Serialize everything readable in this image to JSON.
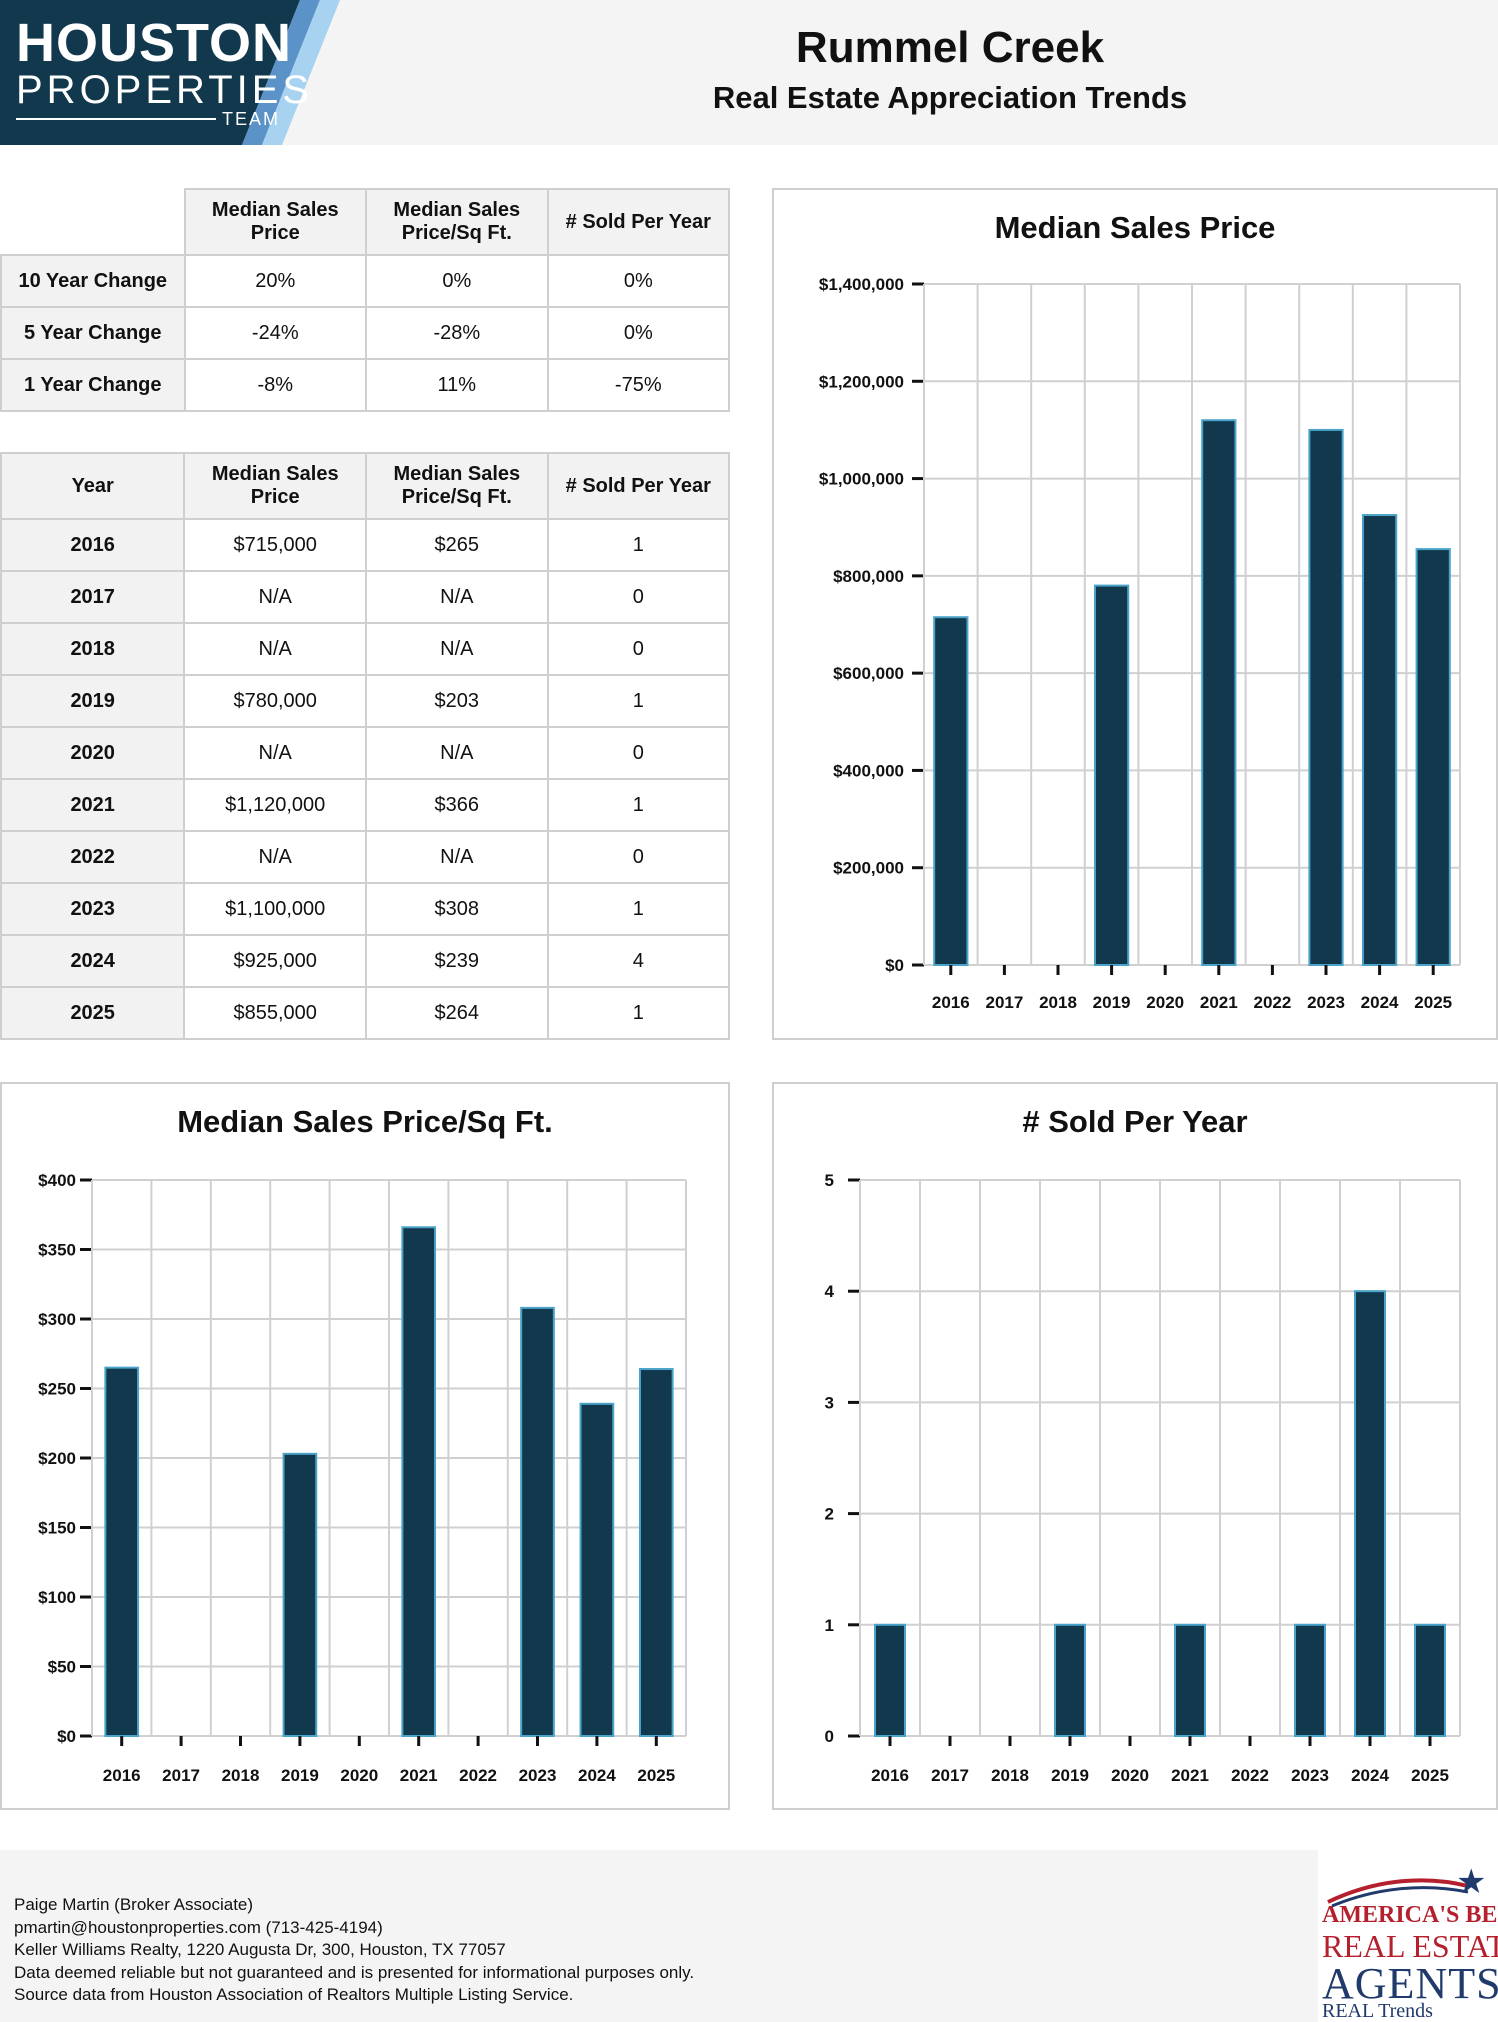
{
  "logo": {
    "line1": "HOUSTON",
    "line2": "PROPERTIES",
    "line3": "TEAM"
  },
  "header": {
    "title": "Rummel Creek",
    "subtitle": "Real Estate Appreciation Trends"
  },
  "change_table": {
    "headers": [
      "",
      "Median Sales Price",
      "Median Sales Price/Sq Ft.",
      "# Sold Per Year"
    ],
    "rows": [
      {
        "label": "10 Year Change",
        "price": "20%",
        "sqft": "0%",
        "sold": "0%"
      },
      {
        "label": "5 Year Change",
        "price": "-24%",
        "sqft": "-28%",
        "sold": "0%"
      },
      {
        "label": "1 Year Change",
        "price": "-8%",
        "sqft": "11%",
        "sold": "-75%"
      }
    ]
  },
  "year_table": {
    "headers": [
      "Year",
      "Median Sales Price",
      "Median Sales Price/Sq Ft.",
      "# Sold Per Year"
    ],
    "rows": [
      {
        "year": "2016",
        "price": "$715,000",
        "sqft": "$265",
        "sold": "1"
      },
      {
        "year": "2017",
        "price": "N/A",
        "sqft": "N/A",
        "sold": "0"
      },
      {
        "year": "2018",
        "price": "N/A",
        "sqft": "N/A",
        "sold": "0"
      },
      {
        "year": "2019",
        "price": "$780,000",
        "sqft": "$203",
        "sold": "1"
      },
      {
        "year": "2020",
        "price": "N/A",
        "sqft": "N/A",
        "sold": "0"
      },
      {
        "year": "2021",
        "price": "$1,120,000",
        "sqft": "$366",
        "sold": "1"
      },
      {
        "year": "2022",
        "price": "N/A",
        "sqft": "N/A",
        "sold": "0"
      },
      {
        "year": "2023",
        "price": "$1,100,000",
        "sqft": "$308",
        "sold": "1"
      },
      {
        "year": "2024",
        "price": "$925,000",
        "sqft": "$239",
        "sold": "4"
      },
      {
        "year": "2025",
        "price": "$855,000",
        "sqft": "$264",
        "sold": "1"
      }
    ]
  },
  "chart_data": [
    {
      "type": "bar",
      "title": "Median Sales Price",
      "categories": [
        "2016",
        "2017",
        "2018",
        "2019",
        "2020",
        "2021",
        "2022",
        "2023",
        "2024",
        "2025"
      ],
      "values": [
        715000,
        0,
        0,
        780000,
        0,
        1120000,
        0,
        1100000,
        925000,
        855000
      ],
      "ylim": [
        0,
        1400000
      ],
      "yticks": [
        0,
        200000,
        400000,
        600000,
        800000,
        1000000,
        1200000,
        1400000
      ],
      "ytick_labels": [
        "$0",
        "$200,000",
        "$400,000",
        "$600,000",
        "$800,000",
        "$1,000,000",
        "$1,200,000",
        "$1,400,000"
      ],
      "grid": true,
      "bar_color": "#12384d",
      "bar_edge_color": "#4aa3c8"
    },
    {
      "type": "bar",
      "title": "Median Sales Price/Sq Ft.",
      "categories": [
        "2016",
        "2017",
        "2018",
        "2019",
        "2020",
        "2021",
        "2022",
        "2023",
        "2024",
        "2025"
      ],
      "values": [
        265,
        0,
        0,
        203,
        0,
        366,
        0,
        308,
        239,
        264
      ],
      "ylim": [
        0,
        400
      ],
      "yticks": [
        0,
        50,
        100,
        150,
        200,
        250,
        300,
        350,
        400
      ],
      "ytick_labels": [
        "$0",
        "$50",
        "$100",
        "$150",
        "$200",
        "$250",
        "$300",
        "$350",
        "$400"
      ],
      "grid": true,
      "bar_color": "#12384d",
      "bar_edge_color": "#4aa3c8"
    },
    {
      "type": "bar",
      "title": "# Sold Per Year",
      "categories": [
        "2016",
        "2017",
        "2018",
        "2019",
        "2020",
        "2021",
        "2022",
        "2023",
        "2024",
        "2025"
      ],
      "values": [
        1,
        0,
        0,
        1,
        0,
        1,
        0,
        1,
        4,
        1
      ],
      "ylim": [
        0,
        5
      ],
      "yticks": [
        0,
        1,
        2,
        3,
        4,
        5
      ],
      "ytick_labels": [
        "0",
        "1",
        "2",
        "3",
        "4",
        "5"
      ],
      "grid": true,
      "bar_color": "#12384d",
      "bar_edge_color": "#4aa3c8"
    }
  ],
  "footer": {
    "lines": [
      "Paige Martin (Broker Associate)",
      "pmartin@houstonproperties.com (713-425-4194)",
      "Keller Williams Realty, 1220 Augusta Dr, 300, Houston, TX 77057",
      "Data deemed reliable but not guaranteed and is presented for informational purposes only.",
      "Source data from Houston Association of Realtors Multiple Listing Service."
    ]
  },
  "badge": {
    "line1": "AMERICA'S BEST",
    "line2": "REAL ESTATE",
    "line3": "AGENTS",
    "line4": "REAL Trends"
  },
  "colors": {
    "navy": "#12384d",
    "accent": "#4aa3c8",
    "badge_red": "#b5202e",
    "badge_blue": "#1f3a6b"
  }
}
